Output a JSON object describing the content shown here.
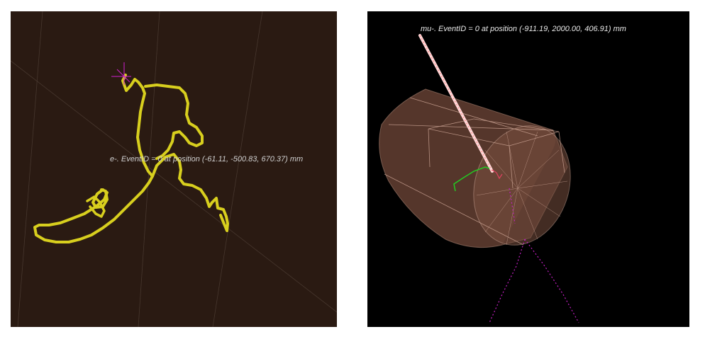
{
  "views": {
    "left": {
      "caption": "e-. EventID = 0 at position (-61.11, -500.83, 670.37) mm",
      "background": "#2a1a12",
      "track_color": "#d8cf1e",
      "marker_color": "#d020d0"
    },
    "right": {
      "caption": "mu-. EventID = 0 at position (-911.19, 2000.00, 406.91) mm",
      "background": "#000000",
      "track_color": "#ffd8d8",
      "detector_color": "#8a5a4a",
      "secondary_color": "#22cc22",
      "dotted_color": "#c020c0"
    }
  }
}
